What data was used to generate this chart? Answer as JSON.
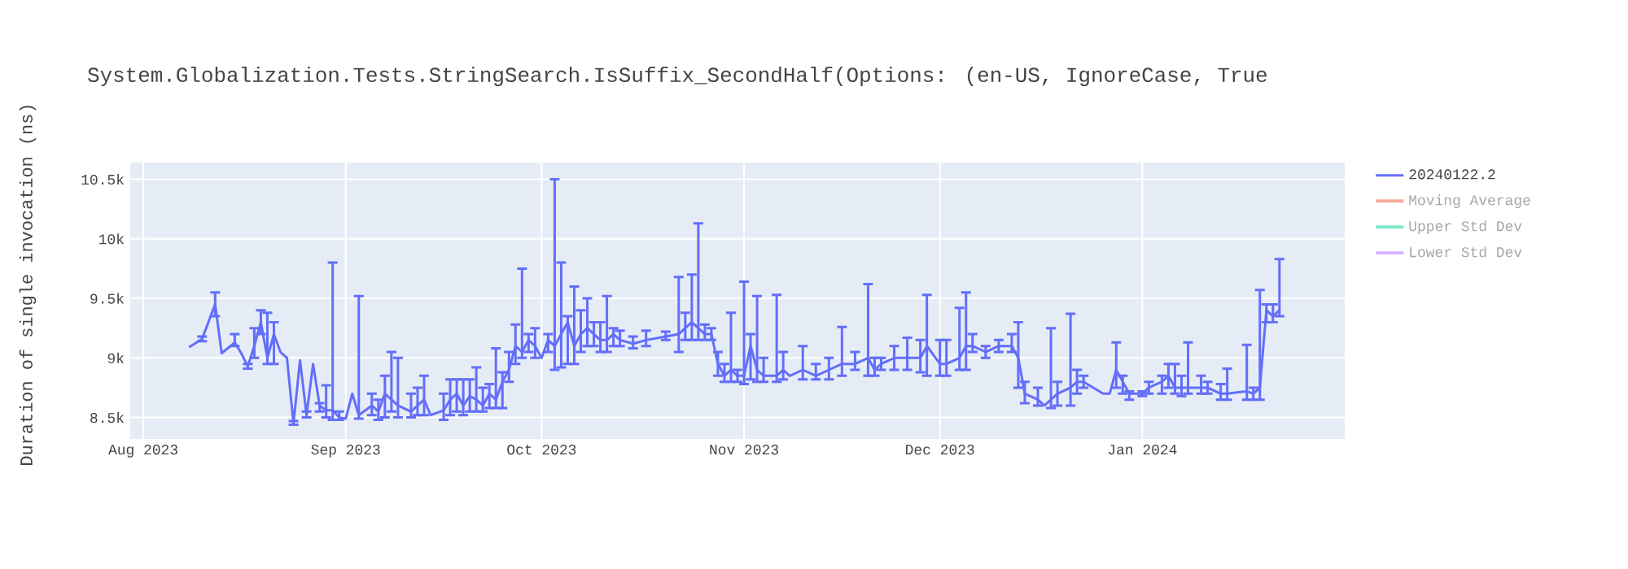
{
  "chart_data": {
    "type": "line",
    "title": "System.Globalization.Tests.StringSearch.IsSuffix_SecondHalf(Options: (en-US, IgnoreCase, True",
    "ylabel": "Duration of single invocation (ns)",
    "x": [
      "2023-08-08",
      "2023-08-10",
      "2023-08-12",
      "2023-08-13",
      "2023-08-15",
      "2023-08-16",
      "2023-08-17",
      "2023-08-18",
      "2023-08-19",
      "2023-08-20",
      "2023-08-21",
      "2023-08-22",
      "2023-08-23",
      "2023-08-24",
      "2023-08-25",
      "2023-08-26",
      "2023-08-27",
      "2023-08-28",
      "2023-08-29",
      "2023-08-30",
      "2023-08-31",
      "2023-09-01",
      "2023-09-02",
      "2023-09-03",
      "2023-09-05",
      "2023-09-06",
      "2023-09-07",
      "2023-09-08",
      "2023-09-09",
      "2023-09-11",
      "2023-09-12",
      "2023-09-13",
      "2023-09-14",
      "2023-09-16",
      "2023-09-17",
      "2023-09-18",
      "2023-09-19",
      "2023-09-20",
      "2023-09-21",
      "2023-09-22",
      "2023-09-23",
      "2023-09-24",
      "2023-09-25",
      "2023-09-26",
      "2023-09-27",
      "2023-09-28",
      "2023-09-29",
      "2023-09-30",
      "2023-10-01",
      "2023-10-02",
      "2023-10-03",
      "2023-10-04",
      "2023-10-05",
      "2023-10-06",
      "2023-10-07",
      "2023-10-08",
      "2023-10-09",
      "2023-10-10",
      "2023-10-11",
      "2023-10-12",
      "2023-10-13",
      "2023-10-15",
      "2023-10-17",
      "2023-10-20",
      "2023-10-22",
      "2023-10-23",
      "2023-10-24",
      "2023-10-25",
      "2023-10-26",
      "2023-10-27",
      "2023-10-28",
      "2023-10-29",
      "2023-10-30",
      "2023-10-31",
      "2023-11-01",
      "2023-11-02",
      "2023-11-03",
      "2023-11-04",
      "2023-11-06",
      "2023-11-07",
      "2023-11-08",
      "2023-11-10",
      "2023-11-12",
      "2023-11-14",
      "2023-11-16",
      "2023-11-18",
      "2023-11-20",
      "2023-11-21",
      "2023-11-22",
      "2023-11-24",
      "2023-11-26",
      "2023-11-28",
      "2023-11-29",
      "2023-12-01",
      "2023-12-02",
      "2023-12-04",
      "2023-12-05",
      "2023-12-06",
      "2023-12-08",
      "2023-12-10",
      "2023-12-12",
      "2023-12-13",
      "2023-12-14",
      "2023-12-16",
      "2023-12-17",
      "2023-12-18",
      "2023-12-19",
      "2023-12-21",
      "2023-12-22",
      "2023-12-23",
      "2023-12-26",
      "2023-12-27",
      "2023-12-28",
      "2023-12-29",
      "2023-12-30",
      "2024-01-01",
      "2024-01-02",
      "2024-01-04",
      "2024-01-05",
      "2024-01-06",
      "2024-01-07",
      "2024-01-08",
      "2024-01-10",
      "2024-01-11",
      "2024-01-13",
      "2024-01-14",
      "2024-01-17",
      "2024-01-18",
      "2024-01-19",
      "2024-01-20",
      "2024-01-21",
      "2024-01-22"
    ],
    "series": [
      {
        "name": "20240122.2",
        "color": "#636efa",
        "values": [
          9090,
          9160,
          9450,
          9040,
          9130,
          9040,
          8930,
          9100,
          9300,
          9000,
          9200,
          9050,
          9000,
          8450,
          8980,
          8520,
          8950,
          8600,
          8560,
          8560,
          8500,
          8490,
          8700,
          8520,
          8600,
          8550,
          8700,
          8650,
          8600,
          8550,
          8600,
          8650,
          8520,
          8560,
          8650,
          8700,
          8600,
          8680,
          8650,
          8600,
          8700,
          8650,
          8800,
          8900,
          9100,
          9050,
          9150,
          9100,
          9000,
          9150,
          9100,
          9200,
          9300,
          9100,
          9200,
          9250,
          9200,
          9150,
          9150,
          9200,
          9150,
          9120,
          9150,
          9180,
          9200,
          9250,
          9300,
          9250,
          9200,
          9200,
          8950,
          8850,
          8900,
          8850,
          8850,
          9100,
          8900,
          8850,
          8850,
          8900,
          8850,
          8900,
          8850,
          8900,
          8950,
          8950,
          9000,
          8900,
          8950,
          9000,
          9000,
          9000,
          9100,
          8950,
          8950,
          9000,
          9100,
          9100,
          9050,
          9100,
          9100,
          9000,
          8700,
          8650,
          8600,
          8650,
          8700,
          8750,
          8800,
          8800,
          8700,
          8700,
          8900,
          8800,
          8700,
          8700,
          8750,
          8800,
          8850,
          8750,
          8750,
          8750,
          8750,
          8750,
          8700,
          8700,
          8720,
          8700,
          8750,
          9400,
          9350,
          9400
        ],
        "errors": [
          null,
          [
            9140,
            9180
          ],
          [
            9350,
            9550
          ],
          null,
          [
            9100,
            9200
          ],
          null,
          [
            8910,
            8950
          ],
          [
            9000,
            9250
          ],
          [
            9200,
            9400
          ],
          [
            8950,
            9380
          ],
          [
            8950,
            9300
          ],
          null,
          null,
          [
            8440,
            8470
          ],
          null,
          [
            8500,
            8550
          ],
          null,
          [
            8550,
            8620
          ],
          [
            8500,
            8770
          ],
          [
            8480,
            9800
          ],
          [
            8480,
            8550
          ],
          null,
          null,
          [
            8490,
            9520
          ],
          [
            8520,
            8700
          ],
          [
            8480,
            8650
          ],
          [
            8500,
            8850
          ],
          [
            8550,
            9050
          ],
          [
            8500,
            9000
          ],
          [
            8500,
            8700
          ],
          [
            8520,
            8750
          ],
          [
            8520,
            8850
          ],
          null,
          [
            8480,
            8700
          ],
          [
            8520,
            8820
          ],
          [
            8550,
            8820
          ],
          [
            8520,
            8820
          ],
          [
            8550,
            8820
          ],
          [
            8550,
            8920
          ],
          [
            8550,
            8750
          ],
          [
            8580,
            8780
          ],
          [
            8580,
            9080
          ],
          [
            8580,
            8880
          ],
          [
            8800,
            9050
          ],
          [
            8950,
            9280
          ],
          [
            9000,
            9750
          ],
          [
            9050,
            9200
          ],
          [
            9000,
            9250
          ],
          null,
          [
            9050,
            9200
          ],
          [
            8900,
            10500
          ],
          [
            8920,
            9800
          ],
          [
            8950,
            9350
          ],
          [
            8950,
            9600
          ],
          [
            9050,
            9400
          ],
          [
            9100,
            9500
          ],
          [
            9100,
            9300
          ],
          [
            9050,
            9300
          ],
          [
            9050,
            9520
          ],
          [
            9100,
            9250
          ],
          [
            9100,
            9230
          ],
          [
            9080,
            9180
          ],
          [
            9100,
            9230
          ],
          [
            9150,
            9220
          ],
          [
            9050,
            9680
          ],
          [
            9150,
            9380
          ],
          [
            9150,
            9700
          ],
          [
            9150,
            10130
          ],
          [
            9150,
            9280
          ],
          [
            9150,
            9250
          ],
          [
            8850,
            9050
          ],
          [
            8800,
            8950
          ],
          [
            8800,
            9380
          ],
          [
            8800,
            8900
          ],
          [
            8780,
            9640
          ],
          [
            8820,
            9200
          ],
          [
            8800,
            9520
          ],
          [
            8800,
            9000
          ],
          [
            8800,
            9530
          ],
          [
            8820,
            9050
          ],
          null,
          [
            8820,
            9100
          ],
          [
            8820,
            8950
          ],
          [
            8820,
            9000
          ],
          [
            8850,
            9260
          ],
          [
            8900,
            9050
          ],
          [
            8850,
            9620
          ],
          [
            8850,
            9000
          ],
          [
            8900,
            9000
          ],
          [
            8900,
            9100
          ],
          [
            8900,
            9170
          ],
          [
            8880,
            9150
          ],
          [
            8850,
            9530
          ],
          [
            8850,
            9150
          ],
          [
            8850,
            9150
          ],
          [
            8900,
            9420
          ],
          [
            8900,
            9550
          ],
          [
            9050,
            9200
          ],
          [
            9000,
            9100
          ],
          [
            9050,
            9150
          ],
          [
            9050,
            9200
          ],
          [
            8750,
            9300
          ],
          [
            8620,
            8800
          ],
          [
            8600,
            8750
          ],
          null,
          [
            8580,
            9250
          ],
          [
            8600,
            8800
          ],
          [
            8600,
            9370
          ],
          [
            8700,
            8900
          ],
          [
            8750,
            8850
          ],
          null,
          null,
          [
            8750,
            9130
          ],
          [
            8700,
            8850
          ],
          [
            8650,
            8720
          ],
          [
            8680,
            8720
          ],
          [
            8700,
            8800
          ],
          [
            8700,
            8850
          ],
          [
            8750,
            8950
          ],
          [
            8700,
            8950
          ],
          [
            8680,
            8850
          ],
          [
            8700,
            9130
          ],
          [
            8700,
            8850
          ],
          [
            8700,
            8800
          ],
          [
            8650,
            8780
          ],
          [
            8650,
            8910
          ],
          [
            8650,
            9110
          ],
          [
            8650,
            8750
          ],
          [
            8650,
            9570
          ],
          [
            9300,
            9450
          ],
          [
            9300,
            9450
          ],
          [
            9350,
            9830
          ]
        ]
      },
      {
        "name": "Moving Average",
        "color": "#f7aa9d",
        "values": [
          null,
          null,
          null,
          null,
          null,
          null,
          null,
          null,
          null,
          null,
          null,
          null,
          null,
          null,
          null,
          null,
          null,
          null,
          null,
          null,
          null,
          null,
          null,
          null,
          null,
          null,
          null,
          null,
          null,
          null,
          null,
          null,
          null,
          null,
          null,
          null,
          null,
          null,
          null,
          null,
          null,
          null,
          null,
          null,
          null,
          null,
          null,
          null,
          null,
          null,
          null,
          null,
          null,
          null,
          null,
          null,
          null,
          null,
          null,
          null,
          null,
          null,
          null,
          null,
          null,
          null,
          null,
          null,
          null,
          null,
          null,
          null,
          null,
          null,
          null,
          null,
          null,
          null,
          null,
          null,
          null,
          null,
          null,
          null,
          null,
          null,
          null,
          null,
          null,
          null,
          null,
          null,
          null,
          null,
          null,
          null,
          null,
          null,
          null,
          null,
          null,
          null,
          null,
          null,
          null,
          null,
          null,
          null,
          null,
          null,
          null,
          null,
          null,
          null,
          null,
          null,
          null,
          null,
          null,
          null,
          null,
          null,
          null,
          null,
          null,
          null,
          null,
          null,
          null,
          null,
          null,
          null
        ]
      },
      {
        "name": "Upper Std Dev",
        "color": "#80e5ca",
        "values": [
          null,
          null,
          null,
          null,
          null,
          null,
          null,
          null,
          null,
          null,
          null,
          null,
          null,
          null,
          null,
          null,
          null,
          null,
          null,
          null,
          null,
          null,
          null,
          null,
          null,
          null,
          null,
          null,
          null,
          null,
          null,
          null,
          null,
          null,
          null,
          null,
          null,
          null,
          null,
          null,
          null,
          null,
          null,
          null,
          null,
          null,
          null,
          null,
          null,
          null,
          null,
          null,
          null,
          null,
          null,
          null,
          null,
          null,
          null,
          null,
          null,
          null,
          null,
          null,
          null,
          null,
          null,
          null,
          null,
          null,
          null,
          null,
          null,
          null,
          null,
          null,
          null,
          null,
          null,
          null,
          null,
          null,
          null,
          null,
          null,
          null,
          null,
          null,
          null,
          null,
          null,
          null,
          null,
          null,
          null,
          null,
          null,
          null,
          null,
          null,
          null,
          null,
          null,
          null,
          null,
          null,
          null,
          null,
          null,
          null,
          null,
          null,
          null,
          null,
          null,
          null,
          null,
          null,
          null,
          null,
          null,
          null,
          null,
          null,
          null,
          null,
          null,
          null,
          null,
          null,
          null,
          null
        ]
      },
      {
        "name": "Lower Std Dev",
        "color": "#d5b1fc",
        "values": [
          null,
          null,
          null,
          null,
          null,
          null,
          null,
          null,
          null,
          null,
          null,
          null,
          null,
          null,
          null,
          null,
          null,
          null,
          null,
          null,
          null,
          null,
          null,
          null,
          null,
          null,
          null,
          null,
          null,
          null,
          null,
          null,
          null,
          null,
          null,
          null,
          null,
          null,
          null,
          null,
          null,
          null,
          null,
          null,
          null,
          null,
          null,
          null,
          null,
          null,
          null,
          null,
          null,
          null,
          null,
          null,
          null,
          null,
          null,
          null,
          null,
          null,
          null,
          null,
          null,
          null,
          null,
          null,
          null,
          null,
          null,
          null,
          null,
          null,
          null,
          null,
          null,
          null,
          null,
          null,
          null,
          null,
          null,
          null,
          null,
          null,
          null,
          null,
          null,
          null,
          null,
          null,
          null,
          null,
          null,
          null,
          null,
          null,
          null,
          null,
          null,
          null,
          null,
          null,
          null,
          null,
          null,
          null,
          null,
          null,
          null,
          null,
          null,
          null,
          null,
          null,
          null,
          null,
          null,
          null,
          null,
          null,
          null,
          null,
          null,
          null,
          null,
          null,
          null,
          null,
          null,
          null
        ]
      }
    ],
    "xlim": [
      "2023-07-30",
      "2024-02-01"
    ],
    "xticks": [
      {
        "value": "2023-08-01",
        "label": "Aug 2023"
      },
      {
        "value": "2023-09-01",
        "label": "Sep 2023"
      },
      {
        "value": "2023-10-01",
        "label": "Oct 2023"
      },
      {
        "value": "2023-11-01",
        "label": "Nov 2023"
      },
      {
        "value": "2023-12-01",
        "label": "Dec 2023"
      },
      {
        "value": "2024-01-01",
        "label": "Jan 2024"
      }
    ],
    "ylim": [
      8320,
      10640
    ],
    "yticks": [
      {
        "value": 8500,
        "label": "8.5k"
      },
      {
        "value": 9000,
        "label": "9k"
      },
      {
        "value": 9500,
        "label": "9.5k"
      },
      {
        "value": 10000,
        "label": "10k"
      },
      {
        "value": 10500,
        "label": "10.5k"
      }
    ],
    "grid": true,
    "legend": "top right",
    "marker": "none",
    "line_style": "solid"
  }
}
